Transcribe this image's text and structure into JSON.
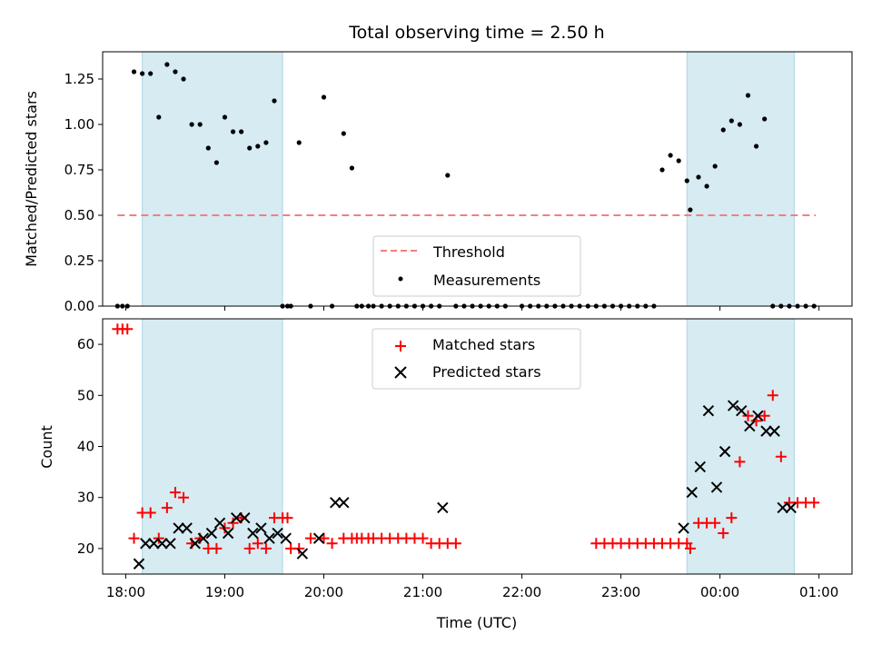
{
  "chart_data": [
    {
      "type": "scatter",
      "title": "Total observing time = 2.50 h",
      "xlabel": "",
      "ylabel": "Matched/Predicted stars",
      "xlim": [
        "17:46",
        "01:20"
      ],
      "ylim": [
        0,
        1.4
      ],
      "yticks": [
        "0.00",
        "0.25",
        "0.50",
        "0.75",
        "1.00",
        "1.25"
      ],
      "ytick_values": [
        0,
        0.25,
        0.5,
        0.75,
        1.0,
        1.25
      ],
      "shaded_intervals": [
        [
          "18:10",
          "19:35"
        ],
        [
          "23:40",
          "00:45"
        ]
      ],
      "legend": {
        "location": "lower center",
        "entries": [
          "Threshold",
          "Measurements"
        ]
      },
      "threshold": {
        "name": "Threshold",
        "y": 0.5,
        "x_range": [
          "17:55",
          "00:58"
        ],
        "color": "#f08080"
      },
      "series": [
        {
          "name": "Measurements",
          "color": "#000000",
          "x": [
            "17:55",
            "17:58",
            "18:01",
            "18:05",
            "18:10",
            "18:15",
            "18:20",
            "18:25",
            "18:30",
            "18:35",
            "18:40",
            "18:45",
            "18:50",
            "18:55",
            "19:00",
            "19:05",
            "19:10",
            "19:15",
            "19:20",
            "19:25",
            "19:30",
            "19:35",
            "19:38",
            "19:40",
            "19:45",
            "19:52",
            "20:00",
            "20:05",
            "20:12",
            "20:17",
            "20:20",
            "20:23",
            "20:27",
            "20:30",
            "20:35",
            "20:40",
            "20:45",
            "20:50",
            "20:55",
            "21:00",
            "21:05",
            "21:10",
            "21:15",
            "21:20",
            "21:25",
            "21:30",
            "21:35",
            "21:40",
            "21:45",
            "21:50",
            "22:00",
            "22:05",
            "22:10",
            "22:15",
            "22:20",
            "22:25",
            "22:30",
            "22:35",
            "22:40",
            "22:45",
            "22:50",
            "22:55",
            "23:00",
            "23:05",
            "23:10",
            "23:15",
            "23:20",
            "23:25",
            "23:30",
            "23:35",
            "23:40",
            "23:42",
            "23:47",
            "23:52",
            "23:57",
            "24:02",
            "24:07",
            "24:12",
            "24:17",
            "24:22",
            "24:27",
            "24:32",
            "24:37",
            "24:42",
            "24:47",
            "24:52",
            "24:57"
          ],
          "y": [
            0,
            0,
            0,
            1.29,
            1.28,
            1.28,
            1.04,
            1.33,
            1.29,
            1.25,
            1.0,
            1.0,
            0.87,
            0.79,
            1.04,
            0.96,
            0.96,
            0.87,
            0.88,
            0.9,
            1.13,
            0,
            0,
            0,
            0.9,
            0,
            1.15,
            0,
            0.95,
            0.76,
            0,
            0,
            0,
            0,
            0,
            0,
            0,
            0,
            0,
            0,
            0,
            0,
            0.72,
            0,
            0,
            0,
            0,
            0,
            0,
            0,
            0,
            0,
            0,
            0,
            0,
            0,
            0,
            0,
            0,
            0,
            0,
            0,
            0,
            0,
            0,
            0,
            0,
            0.75,
            0.83,
            0.8,
            0.69,
            0.53,
            0.71,
            0.66,
            0.77,
            0.97,
            1.02,
            1.0,
            1.16,
            0.88,
            1.03,
            0,
            0,
            0,
            0,
            0,
            0
          ],
          "note_x": "x in UTC time; 24:xx denotes 00:xx of next day"
        }
      ]
    },
    {
      "type": "scatter",
      "title": "",
      "xlabel": "Time (UTC)",
      "ylabel": "Count",
      "xlim": [
        "17:46",
        "01:20"
      ],
      "ylim": [
        15,
        65
      ],
      "xticks": [
        "18:00",
        "19:00",
        "20:00",
        "21:00",
        "22:00",
        "23:00",
        "00:00",
        "01:00"
      ],
      "yticks": [
        "20",
        "30",
        "40",
        "50",
        "60"
      ],
      "ytick_values": [
        20,
        30,
        40,
        50,
        60
      ],
      "shaded_intervals": [
        [
          "18:10",
          "19:35"
        ],
        [
          "23:40",
          "00:45"
        ]
      ],
      "legend": {
        "location": "upper center",
        "entries": [
          "Matched stars",
          "Predicted stars"
        ]
      },
      "series": [
        {
          "name": "Matched stars",
          "marker": "+",
          "color": "#ff0000",
          "x": [
            "17:55",
            "17:58",
            "18:01",
            "18:05",
            "18:10",
            "18:15",
            "18:20",
            "18:25",
            "18:30",
            "18:35",
            "18:40",
            "18:45",
            "18:50",
            "18:55",
            "19:00",
            "19:05",
            "19:10",
            "19:15",
            "19:20",
            "19:25",
            "19:30",
            "19:35",
            "19:38",
            "19:40",
            "19:45",
            "19:52",
            "20:00",
            "20:05",
            "20:12",
            "20:17",
            "20:20",
            "20:23",
            "20:27",
            "20:30",
            "20:35",
            "20:40",
            "20:45",
            "20:50",
            "20:55",
            "21:00",
            "21:05",
            "21:10",
            "21:15",
            "21:20",
            "22:45",
            "22:50",
            "22:55",
            "23:00",
            "23:05",
            "23:10",
            "23:15",
            "23:20",
            "23:25",
            "23:30",
            "23:35",
            "23:40",
            "23:42",
            "23:47",
            "23:52",
            "23:57",
            "24:02",
            "24:07",
            "24:12",
            "24:17",
            "24:22",
            "24:27",
            "24:32",
            "24:37",
            "24:42",
            "24:47",
            "24:52",
            "24:57"
          ],
          "y": [
            63,
            63,
            63,
            22,
            27,
            27,
            22,
            28,
            31,
            30,
            21,
            22,
            20,
            20,
            24,
            25,
            26,
            20,
            21,
            20,
            26,
            26,
            26,
            20,
            20,
            22,
            22,
            21,
            22,
            22,
            22,
            22,
            22,
            22,
            22,
            22,
            22,
            22,
            22,
            22,
            21,
            21,
            21,
            21,
            21,
            21,
            21,
            21,
            21,
            21,
            21,
            21,
            21,
            21,
            21,
            21,
            20,
            25,
            25,
            25,
            23,
            26,
            37,
            46,
            45,
            46,
            50,
            38,
            29,
            29,
            29,
            29
          ]
        },
        {
          "name": "Predicted stars",
          "marker": "x",
          "color": "#000000",
          "x": [
            "18:08",
            "18:12",
            "18:17",
            "18:22",
            "18:27",
            "18:32",
            "18:37",
            "18:42",
            "18:47",
            "18:52",
            "18:57",
            "19:02",
            "19:07",
            "19:12",
            "19:17",
            "19:22",
            "19:27",
            "19:32",
            "19:37",
            "19:47",
            "19:57",
            "20:07",
            "20:12",
            "21:12",
            "23:38",
            "23:43",
            "23:48",
            "23:53",
            "23:58",
            "24:03",
            "24:08",
            "24:13",
            "24:18",
            "24:23",
            "24:28",
            "24:33",
            "24:38",
            "24:43"
          ],
          "y": [
            17,
            21,
            21,
            21,
            21,
            24,
            24,
            21,
            22,
            23,
            25,
            23,
            26,
            26,
            23,
            24,
            22,
            23,
            22,
            19,
            22,
            29,
            29,
            28,
            24,
            31,
            36,
            47,
            32,
            39,
            48,
            47,
            44,
            46,
            43,
            43,
            28,
            28
          ]
        }
      ]
    }
  ]
}
